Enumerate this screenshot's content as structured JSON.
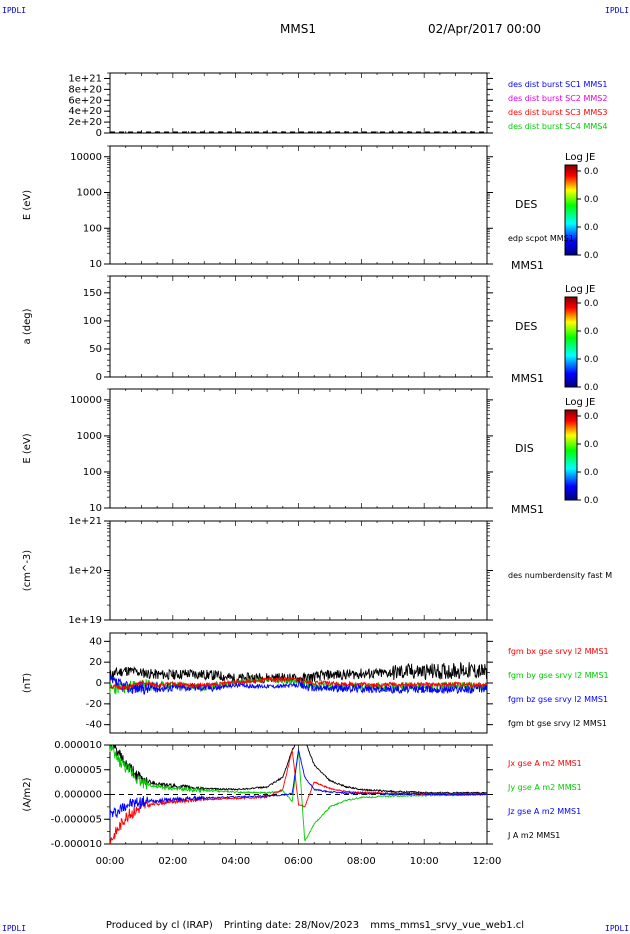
{
  "header": {
    "corner_tl": "IPDLI",
    "corner_tr": "IPDLI",
    "corner_bl": "IPDLI",
    "corner_br": "IPDLI",
    "spacecraft": "MMS1",
    "datetime": "02/Apr/2017 00:00"
  },
  "footer": {
    "producer": "Produced by cl (IRAP)",
    "printing": "Printing date: 28/Nov/2023",
    "file": "mms_mms1_srvy_vue_web1.cl"
  },
  "colors": {
    "black": "#000000",
    "blue": "#0000ff",
    "magenta": "#dd00dd",
    "red": "#ff0000",
    "green": "#00cc00"
  },
  "chart_data": [
    {
      "type": "line",
      "panel": "des_dist",
      "yticks": [
        "1e+21",
        "8e+20",
        "6e+20",
        "4e+20",
        "2e+20",
        "0"
      ],
      "ylim": [
        0,
        1.1e+21
      ],
      "annotation": "dashed zero line",
      "series": [
        {
          "name": "des dist burst SC1 MMS1",
          "color": "#0000ff",
          "values": []
        },
        {
          "name": "des dist burst SC2 MMS2",
          "color": "#dd00dd",
          "values": []
        },
        {
          "name": "des dist burst SC3 MMS3",
          "color": "#ff0000",
          "values": []
        },
        {
          "name": "des dist burst SC4 MMS4",
          "color": "#00cc00",
          "values": []
        }
      ]
    },
    {
      "type": "heatmap",
      "panel": "des_energy",
      "ylabel": "E (eV)",
      "yscale": "log",
      "ylim": [
        10,
        20000
      ],
      "yticks": [
        "10000",
        "1000",
        "100",
        "10"
      ],
      "label": "DES",
      "bottom_label": "MMS1",
      "extra_label": "edp scpot MMS1",
      "colorbar": {
        "title": "Log JE",
        "ticks": [
          "0.0",
          "0.0",
          "0.0",
          "0.0"
        ]
      }
    },
    {
      "type": "heatmap",
      "panel": "des_pitch",
      "ylabel": "a (deg)",
      "ylim": [
        0,
        180
      ],
      "yticks": [
        "150",
        "100",
        "50",
        "0"
      ],
      "label": "DES",
      "bottom_label": "MMS1",
      "colorbar": {
        "title": "Log JE",
        "ticks": [
          "0.0",
          "0.0",
          "0.0",
          "0.0"
        ]
      }
    },
    {
      "type": "heatmap",
      "panel": "dis_energy",
      "ylabel": "E (eV)",
      "yscale": "log",
      "ylim": [
        10,
        20000
      ],
      "yticks": [
        "10000",
        "1000",
        "100",
        "10"
      ],
      "label": "DIS",
      "bottom_label": "MMS1",
      "colorbar": {
        "title": "Log JE",
        "ticks": [
          "0.0",
          "0.0",
          "0.0",
          "0.0"
        ]
      }
    },
    {
      "type": "line",
      "panel": "density",
      "ylabel": "(cm^-3)",
      "yscale": "log",
      "ylim": [
        1e+19,
        1e+21
      ],
      "yticks": [
        "1e+21",
        "1e+20",
        "1e+19"
      ],
      "series": [
        {
          "name": "des numberdensity fast M",
          "color": "#000000",
          "values": []
        }
      ]
    },
    {
      "type": "line",
      "panel": "fgm",
      "ylabel": "(nT)",
      "ylim": [
        -48,
        48
      ],
      "yticks": [
        "40",
        "20",
        "0",
        "-20",
        "-40"
      ],
      "x": [
        0,
        0.5,
        1,
        1.5,
        2,
        2.5,
        3,
        3.5,
        4,
        4.5,
        5,
        5.5,
        6,
        6.5,
        7,
        7.5,
        8,
        8.5,
        9,
        9.5,
        10,
        10.5,
        11,
        11.5,
        12
      ],
      "series": [
        {
          "name": "fgm bx gse srvy l2 MMS1",
          "color": "#ff0000",
          "values": [
            -3,
            -5,
            0,
            -2,
            -1,
            -2,
            -2,
            -1,
            2,
            1,
            3,
            4,
            3,
            0,
            0,
            -1,
            -1,
            -2,
            -1,
            -2,
            -1,
            -2,
            -1,
            -2,
            -2
          ]
        },
        {
          "name": "fgm by gse srvy l2 MMS1",
          "color": "#00cc00",
          "values": [
            -6,
            -4,
            -2,
            -3,
            -2,
            -3,
            -3,
            -2,
            0,
            2,
            3,
            2,
            1,
            -2,
            -3,
            -3,
            -3,
            -3,
            -3,
            -3,
            -3,
            -3,
            -3,
            -3,
            -3
          ]
        },
        {
          "name": "fgm bz gse srvy l2 MMS1",
          "color": "#0000ff",
          "values": [
            2,
            -4,
            -5,
            -5,
            -4,
            -4,
            -4,
            -4,
            -2,
            -3,
            -3,
            -3,
            -2,
            -5,
            -5,
            -5,
            -5,
            -6,
            -6,
            -6,
            -6,
            -6,
            -6,
            -6,
            -5
          ]
        },
        {
          "name": "fgm bt gse srvy l2 MMS1",
          "color": "#000000",
          "values": [
            8,
            12,
            10,
            8,
            8,
            9,
            8,
            7,
            4,
            5,
            5,
            5,
            4,
            6,
            8,
            8,
            9,
            9,
            10,
            11,
            11,
            11,
            12,
            12,
            10
          ]
        }
      ]
    },
    {
      "type": "line",
      "panel": "current",
      "ylabel": "(A/m2)",
      "ylim": [
        -1e-05,
        1e-05
      ],
      "yticks": [
        "0.000010",
        "0.000005",
        "0.000000",
        "-0.000005",
        "-0.000010"
      ],
      "xticks": [
        "00:00",
        "02:00",
        "04:00",
        "06:00",
        "08:00",
        "10:00",
        "12:00"
      ],
      "x": [
        0,
        0.25,
        0.5,
        1,
        1.5,
        2,
        3,
        4,
        5,
        5.5,
        5.8,
        6,
        6.2,
        6.5,
        7,
        7.5,
        8,
        9,
        10,
        11,
        12
      ],
      "series": [
        {
          "name": "Jx gse A m2 MMS1",
          "color": "#ff0000",
          "values": [
            -9.5e-06,
            -7e-06,
            -4.5e-06,
            -2.5e-06,
            -1.8e-06,
            -1.4e-06,
            -1e-06,
            -8e-07,
            -5e-07,
            1e-06,
            9e-06,
            -2e-06,
            -2.5e-06,
            2.5e-06,
            1.2e-06,
            6e-07,
            4e-07,
            2e-07,
            1e-07,
            1e-07,
            1e-07
          ]
        },
        {
          "name": "Jy gse A m2 MMS1",
          "color": "#00cc00",
          "values": [
            9.5e-06,
            7e-06,
            5.5e-06,
            2.5e-06,
            1.5e-06,
            1.2e-06,
            8e-07,
            5e-07,
            3e-07,
            8e-07,
            -1.5e-06,
            9e-06,
            -9.5e-06,
            -6e-06,
            -2.5e-06,
            -1.2e-06,
            -6e-07,
            -3e-07,
            -2e-07,
            -1e-07,
            0
          ]
        },
        {
          "name": "Jz gse A m2 MMS1",
          "color": "#0000ff",
          "values": [
            -4e-06,
            -3.5e-06,
            -2e-06,
            -1.5e-06,
            -1.2e-06,
            -1e-06,
            -7e-07,
            -5e-07,
            -3e-07,
            -1e-07,
            2e-07,
            9e-06,
            3.5e-06,
            1e-06,
            5e-07,
            3e-07,
            2e-07,
            1e-07,
            1e-07,
            0,
            0
          ]
        },
        {
          "name": "J A m2 MMS1",
          "color": "#000000",
          "values": [
            1.1e-05,
            8.5e-06,
            6e-06,
            3e-06,
            2.2e-06,
            1.7e-06,
            1.2e-06,
            1e-06,
            1.5e-06,
            3.5e-06,
            9e-06,
            1.1e-05,
            1.1e-05,
            6e-06,
            2.8e-06,
            1.6e-06,
            1e-06,
            6e-07,
            4e-07,
            3e-07,
            3e-07
          ]
        }
      ]
    }
  ]
}
